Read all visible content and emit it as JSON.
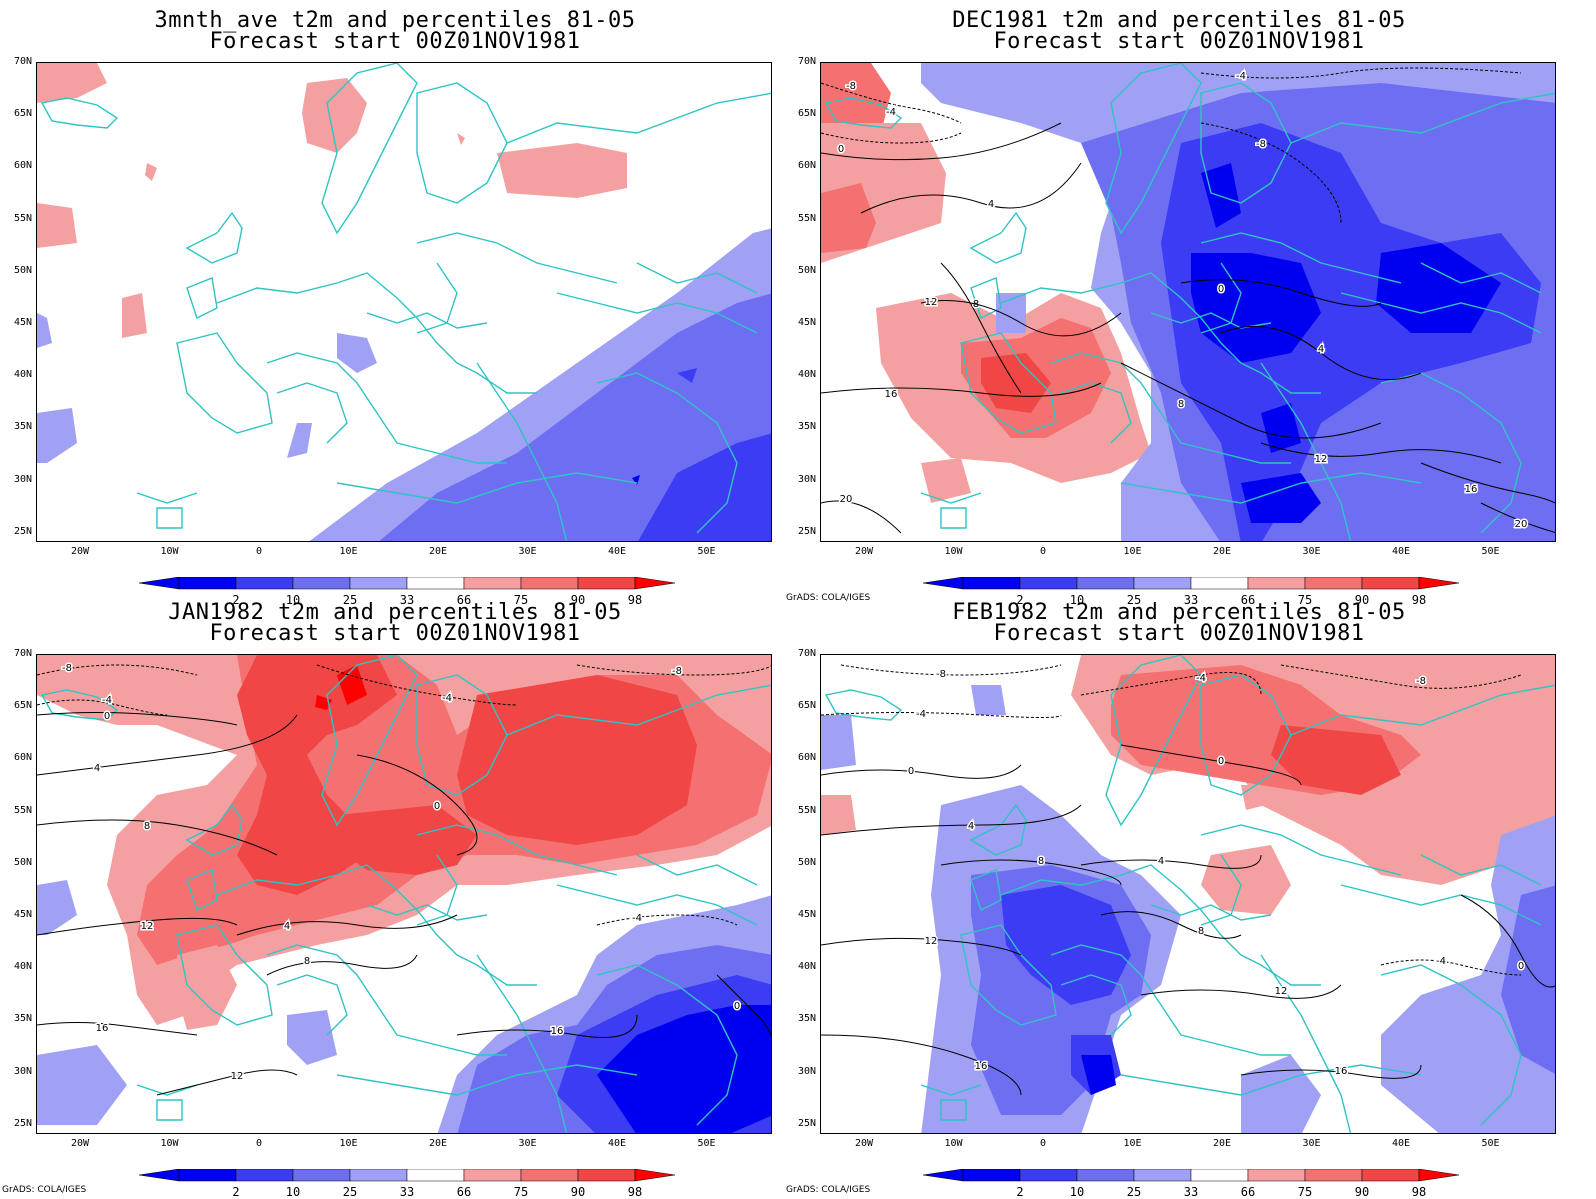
{
  "credit": "GrADS: COLA/IGES",
  "axes": {
    "lat_labels": [
      "70N",
      "65N",
      "60N",
      "55N",
      "50N",
      "45N",
      "40N",
      "35N",
      "30N",
      "25N"
    ],
    "lon_labels": [
      "20W",
      "10W",
      "0",
      "10E",
      "20E",
      "30E",
      "40E",
      "50E"
    ]
  },
  "colorbar": {
    "labels": [
      "2",
      "10",
      "25",
      "33",
      "66",
      "75",
      "90",
      "98"
    ],
    "colors": [
      "#0000f0",
      "#3c3cf5",
      "#6e6ef2",
      "#a0a0f5",
      "#ffffff",
      "#f5a0a0",
      "#f57070",
      "#f04646",
      "#ff0000"
    ]
  },
  "colors": {
    "coast": "#2ec4c4",
    "contour": "#000000",
    "frame": "#000000"
  },
  "panels": [
    {
      "id": "3mnth",
      "title": "3mnth_ave t2m and percentiles 81-05",
      "subtitle": "Forecast start 00Z01NOV1981",
      "show_credit": false,
      "contour_labels": []
    },
    {
      "id": "dec1981",
      "title": "DEC1981 t2m and percentiles 81-05",
      "subtitle": "Forecast start 00Z01NOV1981",
      "show_credit": true,
      "contour_labels": [
        "-8",
        "-4",
        "0",
        "4",
        "8",
        "12",
        "16",
        "20",
        "-4",
        "-8",
        "0",
        "4",
        "8",
        "12",
        "16",
        "20"
      ]
    },
    {
      "id": "jan1982",
      "title": "JAN1982 t2m and percentiles 81-05",
      "subtitle": "Forecast start 00Z01NOV1981",
      "show_credit": true,
      "contour_labels": [
        "-8",
        "-4",
        "0",
        "4",
        "8",
        "12",
        "16",
        "-4",
        "0",
        "4",
        "8",
        "12",
        "16",
        "-8",
        "-4",
        "0"
      ]
    },
    {
      "id": "feb1982",
      "title": "FEB1982 t2m and percentiles 81-05",
      "subtitle": "Forecast start 00Z01NOV1981",
      "show_credit": true,
      "contour_labels": [
        "-8",
        "-4",
        "0",
        "4",
        "8",
        "12",
        "16",
        "-4",
        "0",
        "4",
        "8",
        "12",
        "16",
        "-8",
        "-4",
        "0"
      ]
    }
  ]
}
